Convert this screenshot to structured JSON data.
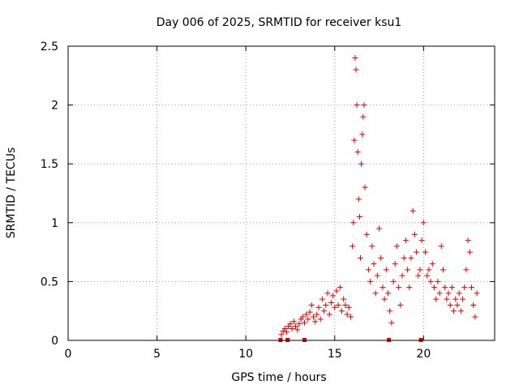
{
  "chart_data": {
    "type": "scatter",
    "title": "Day 006 of 2025, SRMTID for receiver ksu1",
    "xlabel": "GPS time / hours",
    "ylabel": "SRMTID / TECUs",
    "xlim": [
      0,
      24
    ],
    "ylim": [
      0,
      2.5
    ],
    "xticks": [
      0,
      5,
      10,
      15,
      20
    ],
    "yticks": [
      0,
      0.5,
      1,
      1.5,
      2,
      2.5
    ],
    "xtick_labels": [
      "0",
      "5",
      "10",
      "15",
      "20"
    ],
    "ytick_labels": [
      "0",
      "0.5",
      "1",
      "1.5",
      "2",
      "2.5"
    ],
    "grid": true,
    "marker": "+",
    "color": "#e00000",
    "series": [
      {
        "name": "SRMTID",
        "points": [
          [
            12.0,
            0.05
          ],
          [
            12.1,
            0.08
          ],
          [
            12.2,
            0.1
          ],
          [
            12.3,
            0.07
          ],
          [
            12.4,
            0.12
          ],
          [
            12.5,
            0.14
          ],
          [
            12.6,
            0.1
          ],
          [
            12.7,
            0.16
          ],
          [
            12.8,
            0.12
          ],
          [
            12.9,
            0.09
          ],
          [
            13.0,
            0.14
          ],
          [
            13.1,
            0.18
          ],
          [
            13.2,
            0.2
          ],
          [
            13.3,
            0.15
          ],
          [
            13.4,
            0.22
          ],
          [
            13.5,
            0.18
          ],
          [
            13.6,
            0.24
          ],
          [
            13.7,
            0.3
          ],
          [
            13.8,
            0.2
          ],
          [
            13.9,
            0.16
          ],
          [
            14.0,
            0.22
          ],
          [
            14.1,
            0.28
          ],
          [
            14.2,
            0.18
          ],
          [
            14.3,
            0.35
          ],
          [
            14.4,
            0.25
          ],
          [
            14.5,
            0.3
          ],
          [
            14.6,
            0.4
          ],
          [
            14.7,
            0.22
          ],
          [
            14.8,
            0.32
          ],
          [
            14.9,
            0.38
          ],
          [
            15.0,
            0.28
          ],
          [
            15.1,
            0.42
          ],
          [
            15.2,
            0.3
          ],
          [
            15.3,
            0.45
          ],
          [
            15.4,
            0.25
          ],
          [
            15.5,
            0.35
          ],
          [
            15.6,
            0.3
          ],
          [
            15.7,
            0.22
          ],
          [
            15.8,
            0.28
          ],
          [
            15.9,
            0.2
          ],
          [
            16.0,
            0.8
          ],
          [
            16.05,
            1.0
          ],
          [
            16.1,
            1.7
          ],
          [
            16.15,
            2.4
          ],
          [
            16.2,
            2.3
          ],
          [
            16.25,
            2.0
          ],
          [
            16.3,
            1.6
          ],
          [
            16.35,
            1.2
          ],
          [
            16.4,
            1.05
          ],
          [
            16.45,
            0.7
          ],
          [
            16.5,
            1.5
          ],
          [
            16.55,
            1.75
          ],
          [
            16.6,
            1.9
          ],
          [
            16.65,
            2.0
          ],
          [
            16.7,
            1.3
          ],
          [
            16.8,
            0.9
          ],
          [
            16.9,
            0.6
          ],
          [
            17.0,
            0.5
          ],
          [
            17.1,
            0.8
          ],
          [
            17.2,
            0.65
          ],
          [
            17.3,
            0.4
          ],
          [
            17.4,
            0.55
          ],
          [
            17.5,
            0.95
          ],
          [
            17.6,
            0.7
          ],
          [
            17.7,
            0.45
          ],
          [
            17.8,
            0.35
          ],
          [
            17.9,
            0.6
          ],
          [
            18.0,
            0.4
          ],
          [
            18.1,
            0.25
          ],
          [
            18.2,
            0.15
          ],
          [
            18.3,
            0.5
          ],
          [
            18.4,
            0.65
          ],
          [
            18.5,
            0.8
          ],
          [
            18.6,
            0.45
          ],
          [
            18.7,
            0.3
          ],
          [
            18.8,
            0.55
          ],
          [
            18.9,
            0.7
          ],
          [
            19.0,
            0.85
          ],
          [
            19.1,
            0.6
          ],
          [
            19.2,
            0.45
          ],
          [
            19.3,
            0.7
          ],
          [
            19.4,
            1.1
          ],
          [
            19.5,
            0.9
          ],
          [
            19.6,
            0.75
          ],
          [
            19.7,
            0.55
          ],
          [
            19.8,
            0.6
          ],
          [
            19.9,
            0.85
          ],
          [
            20.0,
            1.0
          ],
          [
            20.1,
            0.75
          ],
          [
            20.2,
            0.55
          ],
          [
            20.3,
            0.6
          ],
          [
            20.4,
            0.5
          ],
          [
            20.5,
            0.65
          ],
          [
            20.6,
            0.45
          ],
          [
            20.7,
            0.35
          ],
          [
            20.8,
            0.5
          ],
          [
            20.9,
            0.4
          ],
          [
            21.0,
            0.8
          ],
          [
            21.1,
            0.6
          ],
          [
            21.2,
            0.45
          ],
          [
            21.3,
            0.35
          ],
          [
            21.4,
            0.4
          ],
          [
            21.5,
            0.3
          ],
          [
            21.6,
            0.45
          ],
          [
            21.7,
            0.25
          ],
          [
            21.8,
            0.35
          ],
          [
            21.9,
            0.3
          ],
          [
            22.0,
            0.4
          ],
          [
            22.1,
            0.25
          ],
          [
            22.2,
            0.35
          ],
          [
            22.3,
            0.45
          ],
          [
            22.4,
            0.6
          ],
          [
            22.5,
            0.85
          ],
          [
            22.6,
            0.75
          ],
          [
            22.7,
            0.45
          ],
          [
            22.8,
            0.3
          ],
          [
            22.9,
            0.2
          ],
          [
            23.0,
            0.4
          ]
        ]
      }
    ],
    "gap_markers_x": [
      11.95,
      12.35,
      13.3,
      18.05,
      19.85
    ]
  }
}
